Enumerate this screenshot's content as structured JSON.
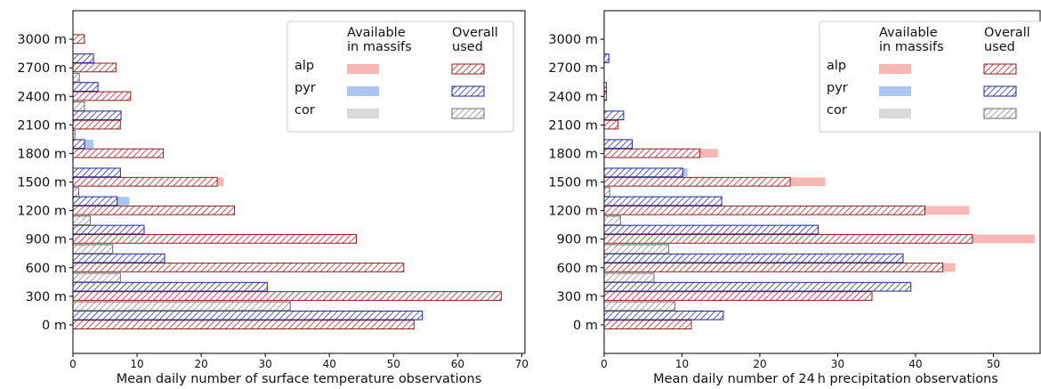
{
  "chart_data": [
    {
      "type": "bar",
      "orientation": "horizontal",
      "xlabel": "Mean daily number of surface temperature observations",
      "ylabel": "",
      "xlim": [
        0,
        70.5
      ],
      "ylim": [
        -300,
        3300
      ],
      "x_ticks": [
        0,
        10,
        20,
        30,
        40,
        50,
        60,
        70
      ],
      "y_tick_labels": [
        "0 m",
        "300 m",
        "600 m",
        "900 m",
        "1200 m",
        "1500 m",
        "1800 m",
        "2100 m",
        "2400 m",
        "2700 m",
        "3000 m"
      ],
      "categories": [
        0,
        300,
        600,
        900,
        1200,
        1500,
        1800,
        2100,
        2400,
        2700,
        3000
      ],
      "legend": {
        "placement": "top-right",
        "col_headers": [
          "Available\nin massifs",
          "Overall\nused"
        ],
        "rows": [
          "alp",
          "pyr",
          "cor"
        ]
      },
      "series": [
        {
          "name": "alp",
          "kind": "available",
          "values": [
            53.2,
            66.8,
            51.6,
            44.2,
            25.2,
            23.5,
            14.1,
            7.4,
            9.0,
            6.7,
            1.8
          ]
        },
        {
          "name": "alp",
          "kind": "used",
          "values": [
            53.2,
            66.8,
            51.6,
            44.2,
            25.2,
            22.5,
            14.1,
            7.4,
            9.0,
            6.7,
            1.8
          ]
        },
        {
          "name": "pyr",
          "kind": "available",
          "values": [
            54.5,
            30.3,
            14.3,
            11.1,
            8.8,
            7.4,
            3.2,
            7.5,
            3.9,
            3.2,
            0
          ]
        },
        {
          "name": "pyr",
          "kind": "used",
          "values": [
            54.5,
            30.3,
            14.3,
            11.1,
            6.9,
            7.4,
            1.8,
            7.5,
            3.9,
            3.2,
            0
          ]
        },
        {
          "name": "cor",
          "kind": "available",
          "values": [
            33.9,
            7.4,
            6.2,
            2.7,
            0.9,
            0,
            0.3,
            1.8,
            1.0,
            0,
            0
          ]
        },
        {
          "name": "cor",
          "kind": "used",
          "values": [
            33.9,
            7.4,
            6.2,
            2.7,
            0.9,
            0,
            0.3,
            1.8,
            1.0,
            0,
            0
          ]
        }
      ]
    },
    {
      "type": "bar",
      "orientation": "horizontal",
      "xlabel": "Mean daily number of 24 h precipitation observations",
      "ylabel": "",
      "xlim": [
        0,
        56
      ],
      "ylim": [
        -300,
        3300
      ],
      "x_ticks": [
        0,
        10,
        20,
        30,
        40,
        50
      ],
      "y_tick_labels": [
        "0 m",
        "300 m",
        "600 m",
        "900 m",
        "1200 m",
        "1500 m",
        "1800 m",
        "2100 m",
        "2400 m",
        "2700 m",
        "3000 m"
      ],
      "categories": [
        0,
        300,
        600,
        900,
        1200,
        1500,
        1800,
        2100,
        2400,
        2700,
        3000
      ],
      "legend": {
        "placement": "top-right",
        "col_headers": [
          "Available\nin massifs",
          "Overall\nused"
        ],
        "rows": [
          "alp",
          "pyr",
          "cor"
        ]
      },
      "series": [
        {
          "name": "alp",
          "kind": "available",
          "values": [
            11.2,
            34.4,
            45.1,
            55.3,
            46.9,
            28.4,
            14.6,
            1.8,
            0.3,
            0,
            0
          ]
        },
        {
          "name": "alp",
          "kind": "used",
          "values": [
            11.2,
            34.4,
            43.5,
            47.3,
            41.2,
            23.9,
            12.3,
            1.8,
            0.3,
            0,
            0
          ]
        },
        {
          "name": "pyr",
          "kind": "available",
          "values": [
            15.3,
            39.4,
            38.4,
            27.5,
            15.1,
            10.7,
            3.6,
            2.5,
            0.3,
            0.6,
            0
          ]
        },
        {
          "name": "pyr",
          "kind": "used",
          "values": [
            15.3,
            39.4,
            38.4,
            27.5,
            15.1,
            10.1,
            3.6,
            2.5,
            0.3,
            0.6,
            0
          ]
        },
        {
          "name": "cor",
          "kind": "available",
          "values": [
            9.1,
            6.4,
            8.3,
            2.1,
            0.7,
            0,
            0,
            0,
            0,
            0,
            0
          ]
        },
        {
          "name": "cor",
          "kind": "used",
          "values": [
            9.1,
            6.4,
            8.3,
            2.1,
            0.7,
            0,
            0,
            0,
            0,
            0,
            0
          ]
        }
      ]
    }
  ],
  "colors": {
    "alp_available": "#f7b8b3",
    "alp_used_fill": "#c23b3b",
    "alp_used_edge": "#8f1d1d",
    "pyr_available": "#aac6f2",
    "pyr_used_fill": "#3b48c4",
    "pyr_used_edge": "#1c2490",
    "cor_available": "#d9d9d9",
    "cor_used_fill": "#9a9a9a",
    "cor_used_edge": "#6a6a6a"
  }
}
